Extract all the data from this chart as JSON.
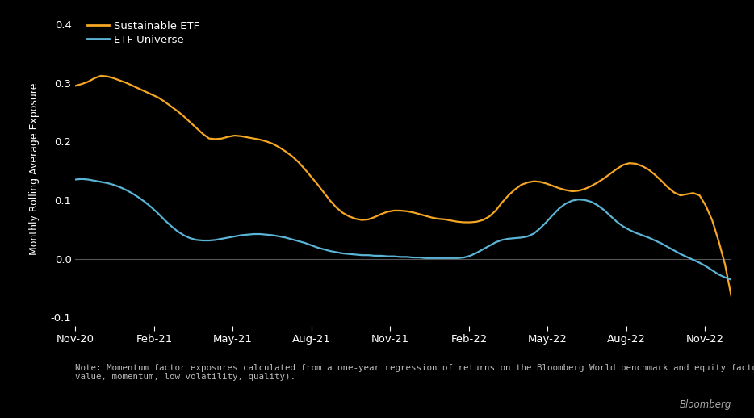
{
  "background_color": "#000000",
  "text_color": "#ffffff",
  "zero_line_color": "#555555",
  "line_color_sustainable": "#f5a623",
  "line_color_etf": "#5ab4d6",
  "ylabel": "Monthly Rolling Average Exposure",
  "ylim": [
    -0.115,
    0.42
  ],
  "yticks": [
    -0.1,
    0.0,
    0.1,
    0.2,
    0.3,
    0.4
  ],
  "xtick_labels": [
    "Nov-20",
    "Feb-21",
    "May-21",
    "Aug-21",
    "Nov-21",
    "Feb-22",
    "May-22",
    "Aug-22",
    "Nov-22"
  ],
  "legend_labels": [
    "Sustainable ETF",
    "ETF Universe"
  ],
  "note": "Note: Momentum factor exposures calculated from a one-year regression of returns on the Bloomberg World benchmark and equity factors (size,\nvalue, momentum, low volatility, quality).",
  "bloomberg_label": "Bloomberg",
  "sustainable_y": [
    0.295,
    0.298,
    0.302,
    0.308,
    0.312,
    0.311,
    0.308,
    0.304,
    0.3,
    0.295,
    0.29,
    0.285,
    0.28,
    0.275,
    0.268,
    0.26,
    0.252,
    0.243,
    0.233,
    0.223,
    0.213,
    0.205,
    0.204,
    0.205,
    0.208,
    0.21,
    0.209,
    0.207,
    0.205,
    0.203,
    0.2,
    0.196,
    0.19,
    0.183,
    0.175,
    0.165,
    0.153,
    0.14,
    0.127,
    0.113,
    0.099,
    0.087,
    0.078,
    0.072,
    0.068,
    0.066,
    0.067,
    0.071,
    0.076,
    0.08,
    0.082,
    0.082,
    0.081,
    0.079,
    0.076,
    0.073,
    0.07,
    0.068,
    0.067,
    0.065,
    0.063,
    0.062,
    0.062,
    0.063,
    0.066,
    0.072,
    0.082,
    0.096,
    0.108,
    0.118,
    0.126,
    0.13,
    0.132,
    0.131,
    0.128,
    0.124,
    0.12,
    0.117,
    0.115,
    0.116,
    0.119,
    0.124,
    0.13,
    0.137,
    0.145,
    0.153,
    0.16,
    0.163,
    0.162,
    0.158,
    0.152,
    0.143,
    0.133,
    0.122,
    0.113,
    0.108,
    0.11,
    0.112,
    0.108,
    0.09,
    0.065,
    0.03,
    -0.01,
    -0.065
  ],
  "etf_y": [
    0.135,
    0.136,
    0.135,
    0.133,
    0.131,
    0.129,
    0.126,
    0.122,
    0.117,
    0.111,
    0.104,
    0.096,
    0.087,
    0.077,
    0.066,
    0.056,
    0.047,
    0.04,
    0.035,
    0.032,
    0.031,
    0.031,
    0.032,
    0.034,
    0.036,
    0.038,
    0.04,
    0.041,
    0.042,
    0.042,
    0.041,
    0.04,
    0.038,
    0.036,
    0.033,
    0.03,
    0.027,
    0.023,
    0.019,
    0.016,
    0.013,
    0.011,
    0.009,
    0.008,
    0.007,
    0.006,
    0.006,
    0.005,
    0.005,
    0.004,
    0.004,
    0.003,
    0.003,
    0.002,
    0.002,
    0.001,
    0.001,
    0.001,
    0.001,
    0.001,
    0.001,
    0.002,
    0.005,
    0.01,
    0.016,
    0.022,
    0.028,
    0.032,
    0.034,
    0.035,
    0.036,
    0.038,
    0.043,
    0.052,
    0.063,
    0.075,
    0.086,
    0.094,
    0.099,
    0.101,
    0.1,
    0.097,
    0.091,
    0.083,
    0.073,
    0.063,
    0.055,
    0.049,
    0.044,
    0.04,
    0.036,
    0.031,
    0.026,
    0.02,
    0.014,
    0.008,
    0.003,
    -0.002,
    -0.007,
    -0.013,
    -0.02,
    -0.027,
    -0.032,
    -0.036
  ]
}
